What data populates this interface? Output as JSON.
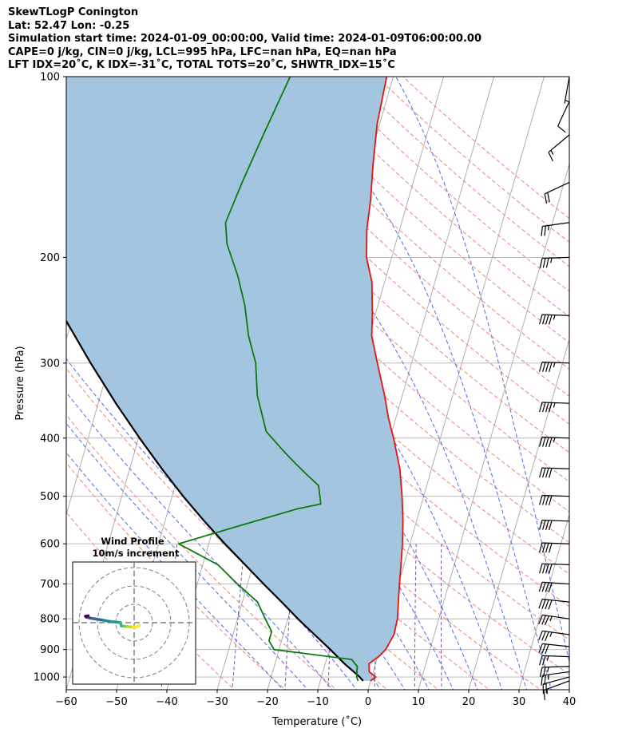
{
  "header": {
    "line1": "SkewTLogP Conington",
    "line2": "Lat: 52.47   Lon: -0.25",
    "line3": "Simulation start time: 2024-01-09_00:00:00, Valid time: 2024-01-09T06:00:00.00",
    "line4": "CAPE=0 j/kg, CIN=0 j/kg, LCL=995 hPa, LFC=nan hPa, EQ=nan hPa",
    "line5": "LFT IDX=20˚C, K IDX=-31˚C, TOTAL TOTS=20˚C, SHWTR_IDX=15˚C"
  },
  "chart_data": {
    "type": "line",
    "title": "SkewTLogP Conington",
    "xlabel": "Temperature (˚C)",
    "ylabel": "Pressure (hPa)",
    "xlim": [
      -60,
      40
    ],
    "ylim": [
      1050,
      100
    ],
    "y_scale": "log",
    "grid": true,
    "x_ticks": [
      "−60",
      "−50",
      "−40",
      "−30",
      "−20",
      "−10",
      "0",
      "10",
      "20",
      "30",
      "40"
    ],
    "x_tick_values": [
      -60,
      -50,
      -40,
      -30,
      -20,
      -10,
      0,
      10,
      20,
      30,
      40
    ],
    "y_ticks": [
      "1000",
      "900",
      "800",
      "700",
      "600",
      "500",
      "400",
      "300",
      "200",
      "100"
    ],
    "y_tick_values": [
      1000,
      900,
      800,
      700,
      600,
      500,
      400,
      300,
      200,
      100
    ],
    "colors": {
      "temperature": "#e8120f",
      "dewpoint": "#0d7a0d",
      "parcel": "#000000",
      "cin_fill": "#a3c5e0",
      "dry_adiabat": "#f08080",
      "moist_adiabat": "#5468e8",
      "mixing_ratio": "#7b52a8",
      "isotherm": "#a8a8a8"
    },
    "series": [
      {
        "key": "temperature",
        "points": [
          [
            1015,
            0.0
          ],
          [
            1000,
            0.8
          ],
          [
            980,
            -0.8
          ],
          [
            950,
            -1.3
          ],
          [
            925,
            0.2
          ],
          [
            900,
            1.2
          ],
          [
            850,
            2.0
          ],
          [
            800,
            1.8
          ],
          [
            750,
            1.0
          ],
          [
            700,
            0.2
          ],
          [
            650,
            -0.6
          ],
          [
            600,
            -1.5
          ],
          [
            550,
            -2.7
          ],
          [
            500,
            -4.3
          ],
          [
            450,
            -6.3
          ],
          [
            400,
            -9.3
          ],
          [
            370,
            -11.5
          ],
          [
            340,
            -13.5
          ],
          [
            300,
            -16.8
          ],
          [
            270,
            -19.5
          ],
          [
            250,
            -20.5
          ],
          [
            220,
            -22.5
          ],
          [
            200,
            -25.0
          ],
          [
            180,
            -26.5
          ],
          [
            160,
            -27.5
          ],
          [
            140,
            -29.0
          ],
          [
            120,
            -30.5
          ],
          [
            100,
            -31.3
          ]
        ]
      },
      {
        "key": "dewpoint",
        "points": [
          [
            1015,
            -2.5
          ],
          [
            1000,
            -3.0
          ],
          [
            960,
            -3.5
          ],
          [
            935,
            -5.0
          ],
          [
            900,
            -21.0
          ],
          [
            870,
            -22.5
          ],
          [
            840,
            -22.5
          ],
          [
            800,
            -24.5
          ],
          [
            750,
            -27.0
          ],
          [
            700,
            -32.0
          ],
          [
            650,
            -37.0
          ],
          [
            600,
            -46.0
          ],
          [
            560,
            -35.0
          ],
          [
            525,
            -24.5
          ],
          [
            515,
            -20.0
          ],
          [
            480,
            -21.5
          ],
          [
            460,
            -24.5
          ],
          [
            440,
            -27.5
          ],
          [
            420,
            -30.5
          ],
          [
            390,
            -35.0
          ],
          [
            340,
            -38.8
          ],
          [
            300,
            -41.0
          ],
          [
            270,
            -44.0
          ],
          [
            240,
            -46.5
          ],
          [
            215,
            -49.5
          ],
          [
            190,
            -53.5
          ],
          [
            175,
            -55.0
          ],
          [
            150,
            -54.0
          ],
          [
            125,
            -52.5
          ],
          [
            100,
            -50.5
          ]
        ]
      },
      {
        "key": "parcel",
        "points": [
          [
            1015,
            -1.5
          ],
          [
            1000,
            -2.4
          ],
          [
            950,
            -6.2
          ],
          [
            900,
            -9.8
          ],
          [
            850,
            -13.8
          ],
          [
            800,
            -18.0
          ],
          [
            750,
            -22.2
          ],
          [
            700,
            -26.8
          ],
          [
            650,
            -31.6
          ],
          [
            600,
            -36.8
          ],
          [
            550,
            -42.2
          ],
          [
            500,
            -47.8
          ],
          [
            450,
            -53.6
          ],
          [
            400,
            -59.8
          ],
          [
            350,
            -66.5
          ],
          [
            300,
            -73.8
          ],
          [
            250,
            -82.0
          ],
          [
            200,
            -91.2
          ],
          [
            150,
            -102.5
          ],
          [
            100,
            -117.5
          ]
        ]
      }
    ],
    "wind_barbs": [
      {
        "p": 1015,
        "speed_kt": 15,
        "dir": 250
      },
      {
        "p": 1000,
        "speed_kt": 20,
        "dir": 255
      },
      {
        "p": 980,
        "speed_kt": 25,
        "dir": 262
      },
      {
        "p": 960,
        "speed_kt": 25,
        "dir": 268
      },
      {
        "p": 925,
        "speed_kt": 25,
        "dir": 272
      },
      {
        "p": 890,
        "speed_kt": 30,
        "dir": 276
      },
      {
        "p": 850,
        "speed_kt": 35,
        "dir": 278
      },
      {
        "p": 800,
        "speed_kt": 35,
        "dir": 278
      },
      {
        "p": 750,
        "speed_kt": 40,
        "dir": 276
      },
      {
        "p": 700,
        "speed_kt": 40,
        "dir": 274
      },
      {
        "p": 650,
        "speed_kt": 40,
        "dir": 272
      },
      {
        "p": 600,
        "speed_kt": 40,
        "dir": 272
      },
      {
        "p": 550,
        "speed_kt": 40,
        "dir": 272
      },
      {
        "p": 500,
        "speed_kt": 40,
        "dir": 272
      },
      {
        "p": 450,
        "speed_kt": 40,
        "dir": 272
      },
      {
        "p": 400,
        "speed_kt": 45,
        "dir": 272
      },
      {
        "p": 350,
        "speed_kt": 45,
        "dir": 272
      },
      {
        "p": 300,
        "speed_kt": 45,
        "dir": 272
      },
      {
        "p": 250,
        "speed_kt": 45,
        "dir": 272
      },
      {
        "p": 200,
        "speed_kt": 35,
        "dir": 268
      },
      {
        "p": 175,
        "speed_kt": 25,
        "dir": 262
      },
      {
        "p": 150,
        "speed_kt": 20,
        "dir": 245
      },
      {
        "p": 125,
        "speed_kt": 15,
        "dir": 230
      },
      {
        "p": 110,
        "speed_kt": 10,
        "dir": 205
      },
      {
        "p": 100,
        "speed_kt": 5,
        "dir": 190
      }
    ],
    "hodograph": {
      "title": "Wind Profile",
      "subtitle": "10m/s increment",
      "ring_step_ms": 10,
      "rings": 3,
      "trace_uv": [
        [
          3.0,
          -1.5
        ],
        [
          1.0,
          -2.3
        ],
        [
          -2.0,
          -2.3
        ],
        [
          -5.0,
          -2.0
        ],
        [
          -7.0,
          -1.8
        ],
        [
          -7.5,
          0.0
        ],
        [
          -9.0,
          0.2
        ],
        [
          -14.0,
          0.8
        ],
        [
          -18.0,
          1.5
        ],
        [
          -21.0,
          2.0
        ],
        [
          -24.0,
          2.5
        ],
        [
          -26.0,
          3.0
        ],
        [
          -26.5,
          3.5
        ],
        [
          -25.0,
          3.8
        ]
      ]
    }
  }
}
